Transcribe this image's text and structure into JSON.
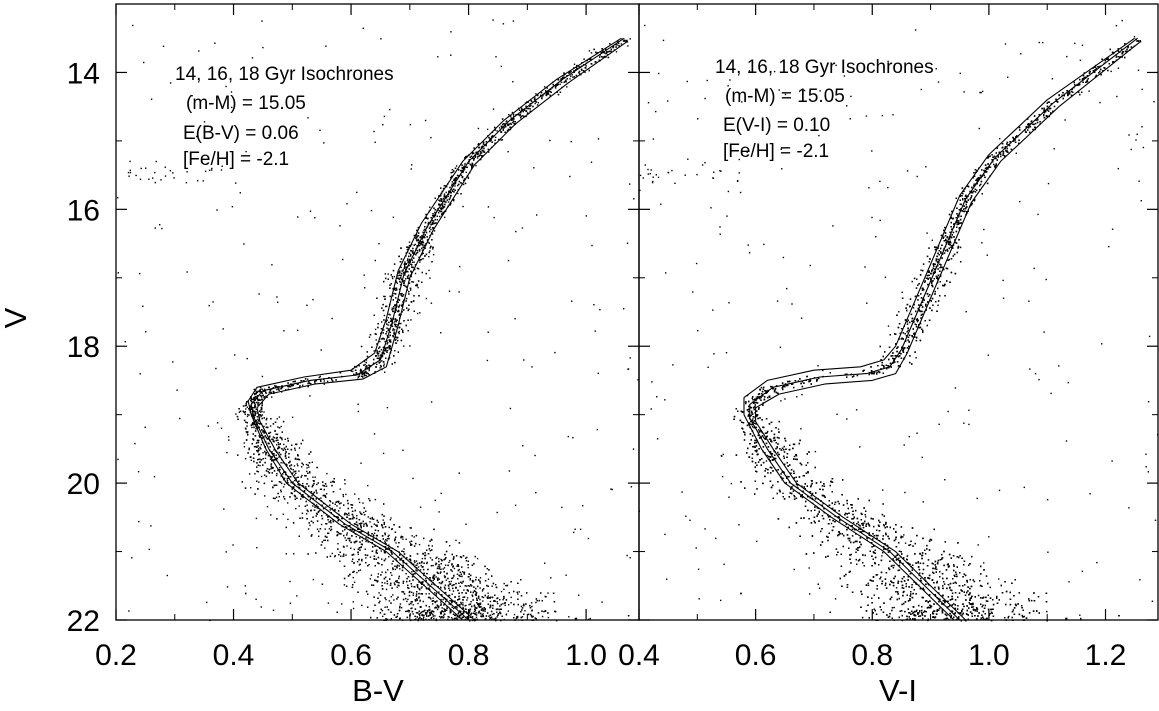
{
  "figure": {
    "shared_ylabel": "V"
  },
  "colors": {
    "ink": "#000000",
    "background": "#ffffff"
  },
  "chart_data": [
    {
      "type": "scatter",
      "panel": "left",
      "xlabel": "B-V",
      "ylabel": "V",
      "xlim": [
        0.2,
        1.09
      ],
      "ylim": [
        22.0,
        13.0
      ],
      "y_inverted": true,
      "xticks": [
        0.2,
        0.4,
        0.6,
        0.8,
        1.0
      ],
      "xtick_labels": [
        "0.2",
        "0.4",
        "0.6",
        "0.8",
        "1.0"
      ],
      "yticks": [
        14,
        16,
        18,
        20,
        22
      ],
      "ytick_labels": [
        "14",
        "16",
        "18",
        "20",
        "22"
      ],
      "grid": false,
      "annotations": [
        "14, 16, 18 Gyr Isochrones",
        "(m-M) = 15.05",
        "E(B-V) = 0.06",
        "[Fe/H] = -2.1"
      ],
      "isochrones": [
        {
          "age_gyr": 14,
          "points": [
            [
              0.79,
              22.0
            ],
            [
              0.66,
              21.0
            ],
            [
              0.58,
              20.6
            ],
            [
              0.49,
              20.0
            ],
            [
              0.455,
              19.5
            ],
            [
              0.43,
              19.0
            ],
            [
              0.425,
              18.8
            ],
            [
              0.44,
              18.6
            ],
            [
              0.52,
              18.45
            ],
            [
              0.6,
              18.35
            ],
            [
              0.64,
              18.1
            ],
            [
              0.66,
              17.6
            ],
            [
              0.68,
              16.9
            ],
            [
              0.72,
              16.2
            ],
            [
              0.79,
              15.3
            ],
            [
              0.86,
              14.7
            ],
            [
              0.95,
              14.1
            ],
            [
              1.06,
              13.5
            ]
          ]
        },
        {
          "age_gyr": 16,
          "points": [
            [
              0.8,
              22.0
            ],
            [
              0.67,
              21.0
            ],
            [
              0.59,
              20.6
            ],
            [
              0.5,
              20.0
            ],
            [
              0.46,
              19.5
            ],
            [
              0.435,
              19.05
            ],
            [
              0.43,
              18.85
            ],
            [
              0.45,
              18.65
            ],
            [
              0.53,
              18.5
            ],
            [
              0.61,
              18.42
            ],
            [
              0.65,
              18.2
            ],
            [
              0.67,
              17.65
            ],
            [
              0.69,
              16.95
            ],
            [
              0.73,
              16.25
            ],
            [
              0.8,
              15.3
            ],
            [
              0.87,
              14.7
            ],
            [
              0.96,
              14.1
            ],
            [
              1.065,
              13.5
            ]
          ]
        },
        {
          "age_gyr": 18,
          "points": [
            [
              0.81,
              22.0
            ],
            [
              0.68,
              21.0
            ],
            [
              0.6,
              20.6
            ],
            [
              0.51,
              20.0
            ],
            [
              0.47,
              19.5
            ],
            [
              0.445,
              19.1
            ],
            [
              0.44,
              18.9
            ],
            [
              0.46,
              18.7
            ],
            [
              0.54,
              18.55
            ],
            [
              0.62,
              18.48
            ],
            [
              0.66,
              18.3
            ],
            [
              0.68,
              17.7
            ],
            [
              0.7,
              17.0
            ],
            [
              0.74,
              16.3
            ],
            [
              0.81,
              15.35
            ],
            [
              0.88,
              14.75
            ],
            [
              0.97,
              14.15
            ],
            [
              1.07,
              13.55
            ]
          ]
        }
      ]
    },
    {
      "type": "scatter",
      "panel": "right",
      "xlabel": "V-I",
      "ylabel": "V",
      "xlim": [
        0.4,
        1.29
      ],
      "ylim": [
        22.0,
        13.0
      ],
      "y_inverted": true,
      "xticks": [
        0.4,
        0.6,
        0.8,
        1.0,
        1.2
      ],
      "xtick_labels": [
        "0.4",
        "0.6",
        "0.8",
        "1.0",
        "1.2"
      ],
      "grid": false,
      "annotations": [
        "14, 16, 18 Gyr Isochrones",
        "(m-M) = 15.05",
        "E(V-I) = 0.10",
        "[Fe/H] = -2.1"
      ],
      "isochrones": [
        {
          "age_gyr": 14,
          "points": [
            [
              0.94,
              22.0
            ],
            [
              0.82,
              21.0
            ],
            [
              0.73,
              20.5
            ],
            [
              0.65,
              20.0
            ],
            [
              0.61,
              19.5
            ],
            [
              0.58,
              19.0
            ],
            [
              0.58,
              18.75
            ],
            [
              0.62,
              18.5
            ],
            [
              0.7,
              18.35
            ],
            [
              0.78,
              18.3
            ],
            [
              0.82,
              18.2
            ],
            [
              0.84,
              18.0
            ],
            [
              0.87,
              17.4
            ],
            [
              0.9,
              16.8
            ],
            [
              0.95,
              15.8
            ],
            [
              1.0,
              15.2
            ],
            [
              1.1,
              14.4
            ],
            [
              1.25,
              13.5
            ]
          ]
        },
        {
          "age_gyr": 16,
          "points": [
            [
              0.95,
              22.0
            ],
            [
              0.83,
              21.0
            ],
            [
              0.74,
              20.5
            ],
            [
              0.66,
              20.0
            ],
            [
              0.62,
              19.5
            ],
            [
              0.59,
              19.05
            ],
            [
              0.59,
              18.85
            ],
            [
              0.63,
              18.6
            ],
            [
              0.71,
              18.45
            ],
            [
              0.79,
              18.4
            ],
            [
              0.83,
              18.3
            ],
            [
              0.85,
              18.05
            ],
            [
              0.88,
              17.45
            ],
            [
              0.91,
              16.85
            ],
            [
              0.96,
              15.85
            ],
            [
              1.01,
              15.25
            ],
            [
              1.11,
              14.45
            ],
            [
              1.255,
              13.5
            ]
          ]
        },
        {
          "age_gyr": 18,
          "points": [
            [
              0.96,
              22.0
            ],
            [
              0.84,
              21.0
            ],
            [
              0.75,
              20.5
            ],
            [
              0.67,
              20.0
            ],
            [
              0.63,
              19.5
            ],
            [
              0.6,
              19.1
            ],
            [
              0.6,
              18.9
            ],
            [
              0.64,
              18.7
            ],
            [
              0.72,
              18.55
            ],
            [
              0.8,
              18.5
            ],
            [
              0.84,
              18.4
            ],
            [
              0.86,
              18.1
            ],
            [
              0.89,
              17.5
            ],
            [
              0.92,
              16.9
            ],
            [
              0.97,
              15.9
            ],
            [
              1.02,
              15.3
            ],
            [
              1.12,
              14.5
            ],
            [
              1.26,
              13.55
            ]
          ]
        }
      ]
    }
  ]
}
